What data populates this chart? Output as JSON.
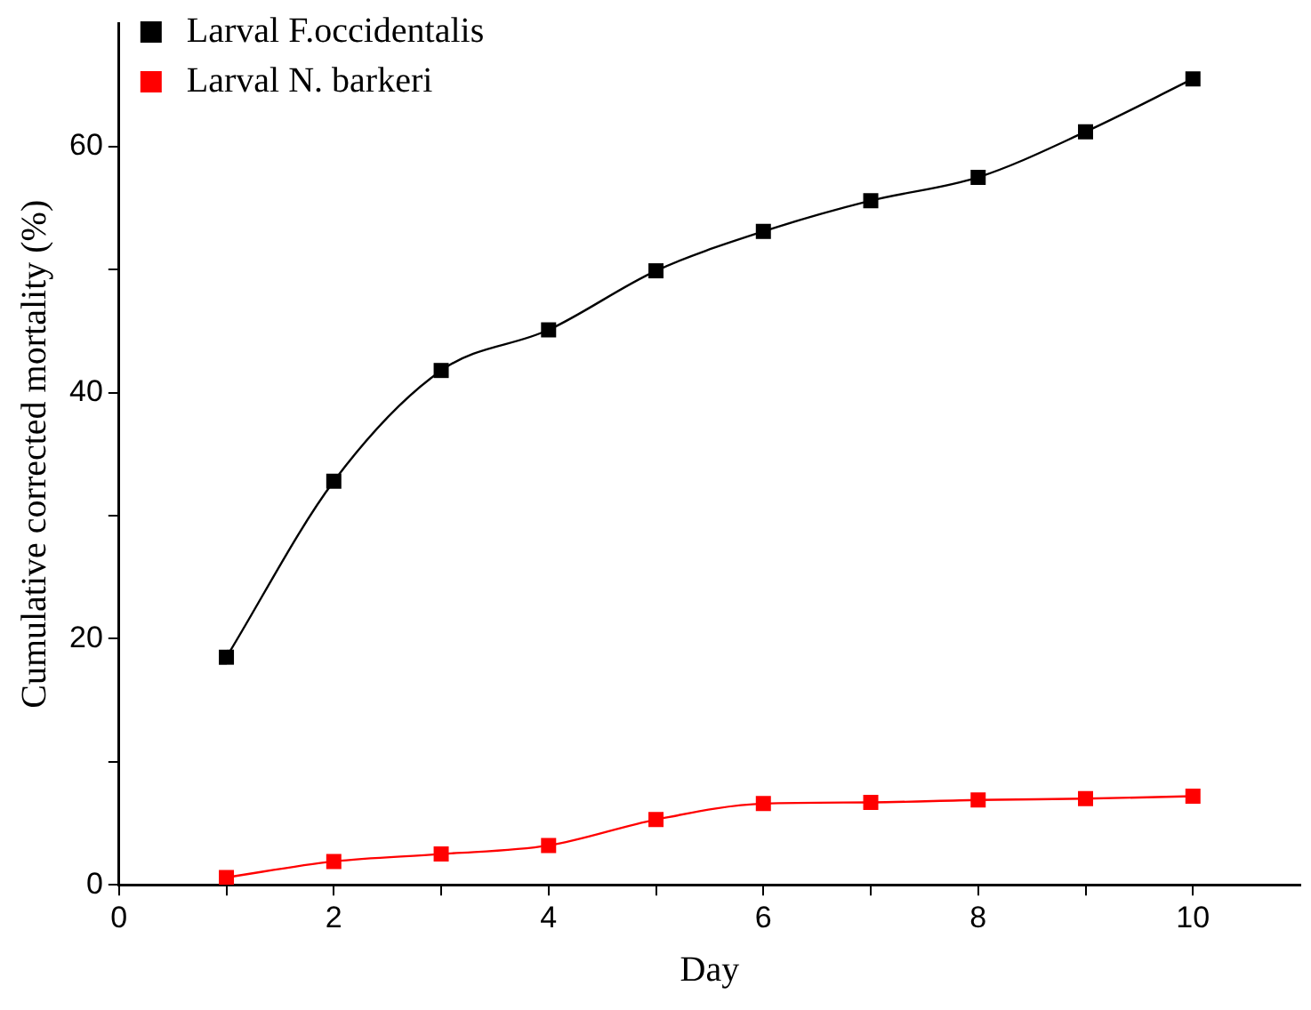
{
  "chart_data": {
    "type": "line",
    "xlabel": "Day",
    "ylabel": "Cumulative corrected mortality (%)",
    "x": [
      1,
      2,
      3,
      4,
      5,
      6,
      7,
      8,
      9,
      10
    ],
    "series": [
      {
        "name": "Larval F.occidentalis",
        "color": "#000000",
        "values": [
          18.5,
          32.8,
          41.8,
          45.1,
          49.9,
          53.1,
          55.6,
          57.5,
          61.2,
          65.5
        ]
      },
      {
        "name": "Larval N. barkeri",
        "color": "#ff0000",
        "values": [
          0.6,
          1.9,
          2.5,
          3.2,
          5.3,
          6.6,
          6.7,
          6.9,
          7.0,
          7.2
        ]
      }
    ],
    "xlim": [
      0,
      11
    ],
    "xticks": [
      0,
      {
        "value": 1,
        "label": null
      },
      2,
      {
        "value": 3,
        "label": null
      },
      4,
      {
        "value": 5,
        "label": null
      },
      6,
      {
        "value": 7,
        "label": null
      },
      8,
      {
        "value": 9,
        "label": null
      },
      10
    ],
    "ylim": [
      0,
      70
    ],
    "yticks": [
      0,
      {
        "value": 10,
        "label": null
      },
      20,
      {
        "value": 30,
        "label": null
      },
      40,
      {
        "value": 50,
        "label": null
      },
      60
    ],
    "grid": false,
    "legend": "top left",
    "marker": "square",
    "line_style": "solid"
  }
}
